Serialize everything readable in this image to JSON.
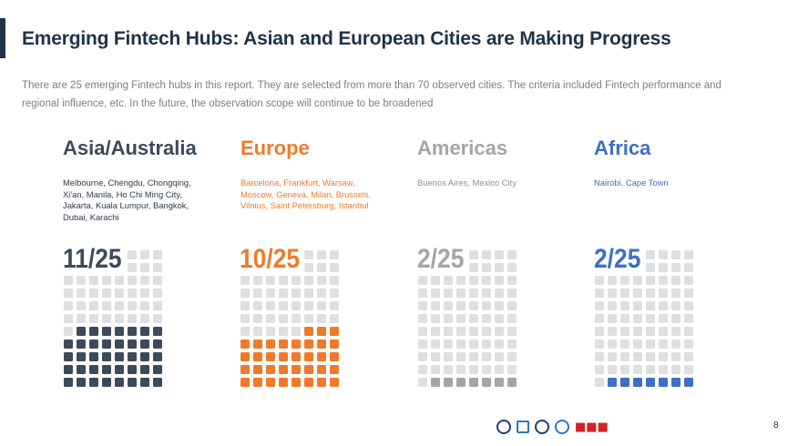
{
  "title": "Emerging Fintech Hubs: Asian and European Cities are Making Progress",
  "subtitle": "There are 25 emerging Fintech hubs in this report. They are selected from more than 70 observed cities. The criteria included Fintech performance and regional influence, etc. In the future, the observation scope will continue to be broadened",
  "colors": {
    "title": "#1f3347",
    "empty_cell": "#dedfe1"
  },
  "regions": [
    {
      "name": "Asia/Australia",
      "cities": "Melbourne, Chengdu, Chongqing, Xi'an, Manila, Ho Chi Ming City, Jakarta, Kuala Lumpur, Bangkok, Dubai, Karachi",
      "count_label": "11/25",
      "count": 11,
      "total": 25,
      "color": "#3c4a5c",
      "city_color": "#2f3b4c"
    },
    {
      "name": "Europe",
      "cities": "Barcelona, Frankfurt, Warsaw, Moscow, Geneva, Milan, Brussels, Vilnius, Saint Petersburg, Istanbul",
      "count_label": "10/25",
      "count": 10,
      "total": 25,
      "color": "#ee7b2b",
      "city_color": "#ee7b2b"
    },
    {
      "name": "Americas",
      "cities": "Buenos Aires, Mexico City",
      "count_label": "2/25",
      "count": 2,
      "total": 25,
      "color": "#a3a5a8",
      "city_color": "#8d9095"
    },
    {
      "name": "Africa",
      "cities": "Nairobi, Cape Town",
      "count_label": "2/25",
      "count": 2,
      "total": 25,
      "color": "#3d6fc4",
      "city_color": "#3d6fc4"
    }
  ],
  "logos": [
    "emblem-logo",
    "sinai-lab-logo",
    "cambridge-logo",
    "association-logo",
    "brand-logo"
  ],
  "page_number": "8"
}
